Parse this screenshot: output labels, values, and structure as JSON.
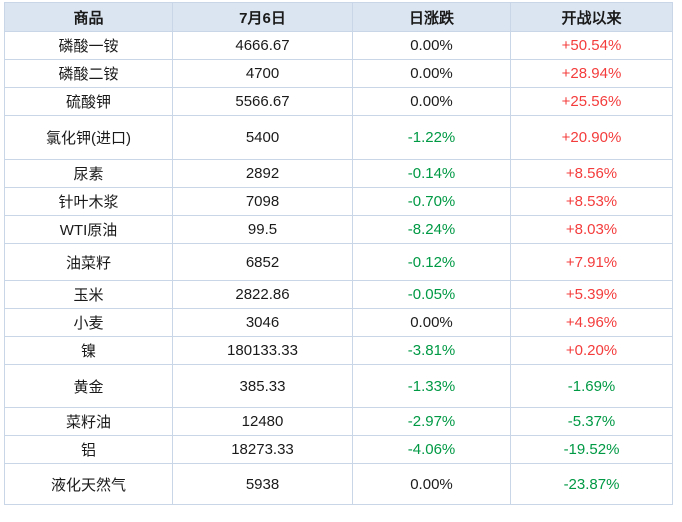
{
  "chart_data": {
    "type": "table",
    "title": "",
    "columns": [
      "商品",
      "7月6日",
      "日涨跌",
      "开战以来"
    ],
    "rows": [
      [
        "磷酸一铵",
        "4666.67",
        "0.00%",
        "+50.54%"
      ],
      [
        "磷酸二铵",
        "4700",
        "0.00%",
        "+28.94%"
      ],
      [
        "硫酸钾",
        "5566.67",
        "0.00%",
        "+25.56%"
      ],
      [
        "氯化钾(进口)",
        "5400",
        "-1.22%",
        "+20.90%"
      ],
      [
        "尿素",
        "2892",
        "-0.14%",
        "+8.56%"
      ],
      [
        "针叶木浆",
        "7098",
        "-0.70%",
        "+8.53%"
      ],
      [
        "WTI原油",
        "99.5",
        "-8.24%",
        "+8.03%"
      ],
      [
        "油菜籽",
        "6852",
        "-0.12%",
        "+7.91%"
      ],
      [
        "玉米",
        "2822.86",
        "-0.05%",
        "+5.39%"
      ],
      [
        "小麦",
        "3046",
        "0.00%",
        "+4.96%"
      ],
      [
        "镍",
        "180133.33",
        "-3.81%",
        "+0.20%"
      ],
      [
        "黄金",
        "385.33",
        "-1.33%",
        "-1.69%"
      ],
      [
        "菜籽油",
        "12480",
        "-2.97%",
        "-5.37%"
      ],
      [
        "铝",
        "18273.33",
        "-4.06%",
        "-19.52%"
      ],
      [
        "液化天然气",
        "5938",
        "0.00%",
        "-23.87%"
      ]
    ],
    "layout_hints": {
      "header_position": "top",
      "grid": true,
      "value_sign_colors": {
        "positive": "red",
        "negative": "green",
        "zero": "black"
      }
    }
  },
  "colors": {
    "positive": "#f43c3c",
    "negative": "#009944",
    "neutral_text": "#1a1a1a",
    "header_bg": "#dbe5f1",
    "border": "#c9d6e8",
    "row_bg": "#ffffff"
  }
}
